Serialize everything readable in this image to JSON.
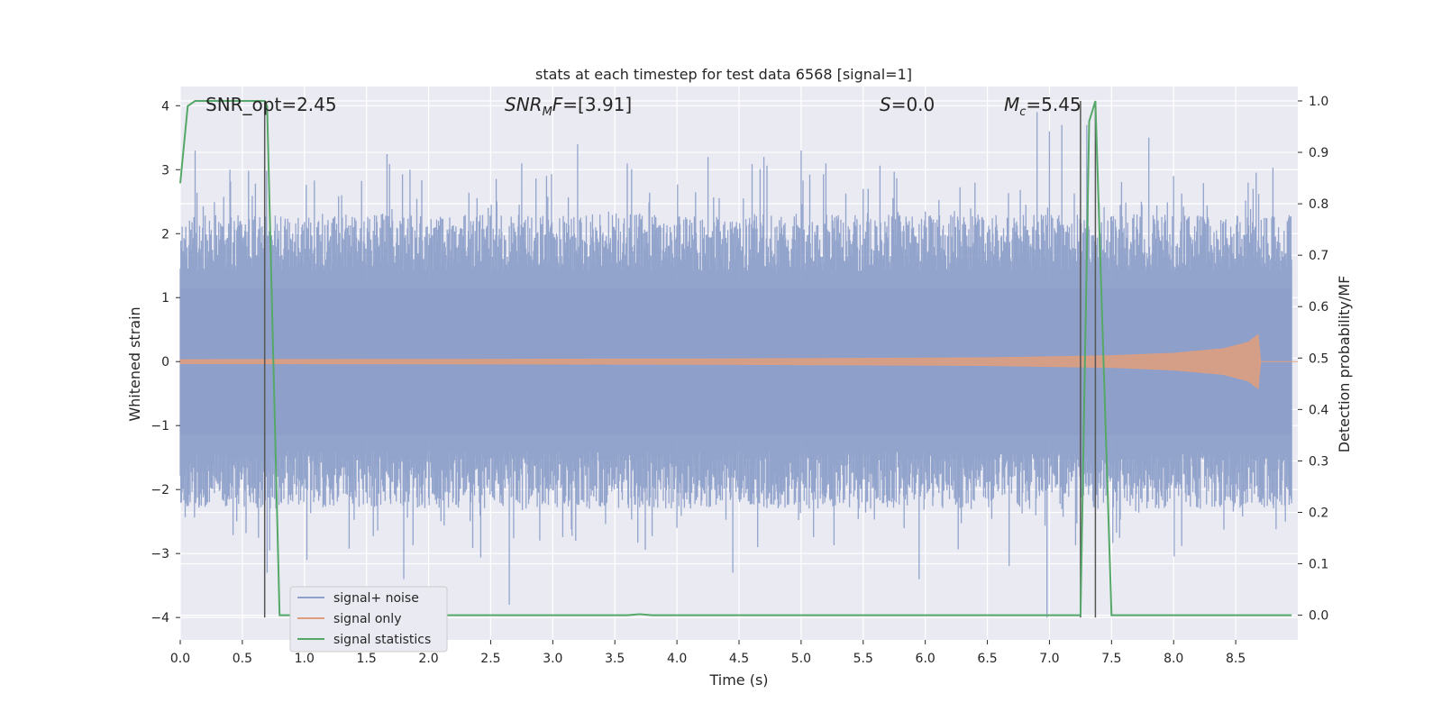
{
  "chart_data": {
    "type": "line",
    "title": "stats at each timestep for test data 6568 [signal=1]",
    "xlabel": "Time (s)",
    "ylabel_left": "Whitened strain",
    "ylabel_right": "Detection probability/MF",
    "xlim": [
      0.0,
      9.0
    ],
    "ylim_left": [
      -4.35,
      4.3
    ],
    "ylim_right": [
      -0.048,
      1.028
    ],
    "grid": true,
    "xticks": [
      0.0,
      0.5,
      1.0,
      1.5,
      2.0,
      2.5,
      3.0,
      3.5,
      4.0,
      4.5,
      5.0,
      5.5,
      6.0,
      6.5,
      7.0,
      7.5,
      8.0,
      8.5
    ],
    "xtick_labels": [
      "0.0",
      "0.5",
      "1.0",
      "1.5",
      "2.0",
      "2.5",
      "3.0",
      "3.5",
      "4.0",
      "4.5",
      "5.0",
      "5.5",
      "6.0",
      "6.5",
      "7.0",
      "7.5",
      "8.0",
      "8.5"
    ],
    "yticks_left": [
      4,
      3,
      2,
      1,
      0,
      -1,
      -2,
      -3,
      -4
    ],
    "ytick_labels_left": [
      "4",
      "3",
      "2",
      "1",
      "0",
      "−1",
      "−2",
      "−3",
      "−4"
    ],
    "yticks_right": [
      1.0,
      0.9,
      0.8,
      0.7,
      0.6,
      0.5,
      0.4,
      0.3,
      0.2,
      0.1,
      0.0
    ],
    "ytick_labels_right": [
      "1.0",
      "0.9",
      "0.8",
      "0.7",
      "0.6",
      "0.5",
      "0.4",
      "0.3",
      "0.2",
      "0.1",
      "0.0"
    ],
    "annotations": {
      "snr_opt": "SNR_opt=2.45",
      "snr_mf": "=[3.91]",
      "s_val": "=0.0",
      "mc_val": "=5.45"
    },
    "legend_position": "lower-left",
    "series": [
      {
        "name": "signal+ noise",
        "color": "#8ea0c9",
        "axis": "left",
        "noise_envelope": {
          "upper_typical": 1.5,
          "lower_typical": -1.5,
          "peaks": [
            {
              "x": 0.12,
              "y": 3.3
            },
            {
              "x": 0.4,
              "y": 3.0
            },
            {
              "x": 0.58,
              "y": 2.5
            },
            {
              "x": 0.7,
              "y": -3.3
            },
            {
              "x": 1.02,
              "y": -3.1
            },
            {
              "x": 1.3,
              "y": 2.6
            },
            {
              "x": 1.8,
              "y": -3.4
            },
            {
              "x": 1.85,
              "y": 3.0
            },
            {
              "x": 2.65,
              "y": -3.8
            },
            {
              "x": 2.75,
              "y": 3.1
            },
            {
              "x": 3.2,
              "y": 3.4
            },
            {
              "x": 3.6,
              "y": 3.1
            },
            {
              "x": 4.0,
              "y": -2.6
            },
            {
              "x": 4.25,
              "y": 3.2
            },
            {
              "x": 4.45,
              "y": -3.3
            },
            {
              "x": 4.65,
              "y": -2.9
            },
            {
              "x": 4.7,
              "y": 3.2
            },
            {
              "x": 5.0,
              "y": 3.3
            },
            {
              "x": 5.2,
              "y": 3.1
            },
            {
              "x": 5.5,
              "y": 2.7
            },
            {
              "x": 5.95,
              "y": -3.4
            },
            {
              "x": 6.4,
              "y": 2.8
            },
            {
              "x": 6.9,
              "y": 3.9
            },
            {
              "x": 6.98,
              "y": -4.0
            },
            {
              "x": 7.0,
              "y": 3.6
            },
            {
              "x": 7.1,
              "y": 3.7
            },
            {
              "x": 7.3,
              "y": 3.7
            },
            {
              "x": 7.8,
              "y": 3.5
            },
            {
              "x": 8.0,
              "y": 2.9
            },
            {
              "x": 8.6,
              "y": 2.8
            },
            {
              "x": 8.9,
              "y": -2.5
            }
          ]
        }
      },
      {
        "name": "signal only",
        "color": "#dd9e80",
        "axis": "left",
        "envelope": [
          {
            "x": 0.0,
            "y": 0.03
          },
          {
            "x": 4.0,
            "y": 0.04
          },
          {
            "x": 6.5,
            "y": 0.06
          },
          {
            "x": 7.5,
            "y": 0.09
          },
          {
            "x": 8.0,
            "y": 0.13
          },
          {
            "x": 8.4,
            "y": 0.2
          },
          {
            "x": 8.6,
            "y": 0.3
          },
          {
            "x": 8.68,
            "y": 0.42
          },
          {
            "x": 8.7,
            "y": 0.0
          },
          {
            "x": 9.0,
            "y": 0.0
          }
        ]
      },
      {
        "name": "signal statistics",
        "color": "#55a868",
        "axis": "right",
        "points": [
          {
            "x": 0.0,
            "y": 0.84
          },
          {
            "x": 0.06,
            "y": 0.99
          },
          {
            "x": 0.12,
            "y": 1.0
          },
          {
            "x": 0.68,
            "y": 1.0
          },
          {
            "x": 0.7,
            "y": 0.99
          },
          {
            "x": 0.8,
            "y": 0.0
          },
          {
            "x": 3.6,
            "y": 0.0
          },
          {
            "x": 3.7,
            "y": 0.002
          },
          {
            "x": 3.8,
            "y": 0.0
          },
          {
            "x": 7.25,
            "y": 0.0
          },
          {
            "x": 7.32,
            "y": 0.96
          },
          {
            "x": 7.37,
            "y": 1.0
          },
          {
            "x": 7.5,
            "y": 0.0
          },
          {
            "x": 8.95,
            "y": 0.0
          }
        ]
      }
    ],
    "vertical_lines": [
      0.68,
      7.25,
      7.37
    ]
  }
}
